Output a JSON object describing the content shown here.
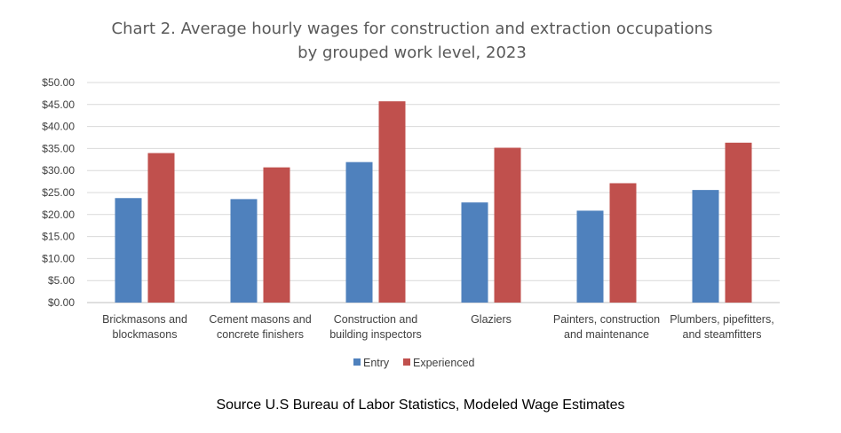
{
  "chart_data": {
    "type": "bar",
    "title": "Chart 2. Average hourly wages for construction and extraction occupations by grouped work level, 2023",
    "title_lines": [
      "Chart 2. Average hourly wages for construction and extraction occupations",
      "by grouped work level, 2023"
    ],
    "categories": [
      [
        "Brickmasons and",
        "blockmasons"
      ],
      [
        "Cement masons and",
        "concrete finishers"
      ],
      [
        "Construction and",
        "building inspectors"
      ],
      [
        "Glaziers"
      ],
      [
        "Painters, construction",
        "and maintenance"
      ],
      [
        "Plumbers, pipefitters,",
        "and steamfitters"
      ]
    ],
    "series": [
      {
        "name": "Entry",
        "color": "#4F81BD",
        "values": [
          23.74,
          23.51,
          31.92,
          22.75,
          20.88,
          25.58
        ]
      },
      {
        "name": "Experienced",
        "color": "#C0504D",
        "values": [
          33.97,
          30.72,
          45.73,
          35.18,
          27.12,
          36.33
        ]
      }
    ],
    "ylim": [
      0,
      50
    ],
    "y_ticks": [
      0,
      5,
      10,
      15,
      20,
      25,
      30,
      35,
      40,
      45,
      50
    ],
    "y_tick_labels": [
      "$0.00",
      "$5.00",
      "$10.00",
      "$15.00",
      "$20.00",
      "$25.00",
      "$30.00",
      "$35.00",
      "$40.00",
      "$45.00",
      "$50.00"
    ],
    "xlabel": "",
    "ylabel": "",
    "grid": true,
    "legend_position": "bottom"
  },
  "source_text": "Source U.S Bureau of Labor Statistics, Modeled Wage Estimates"
}
